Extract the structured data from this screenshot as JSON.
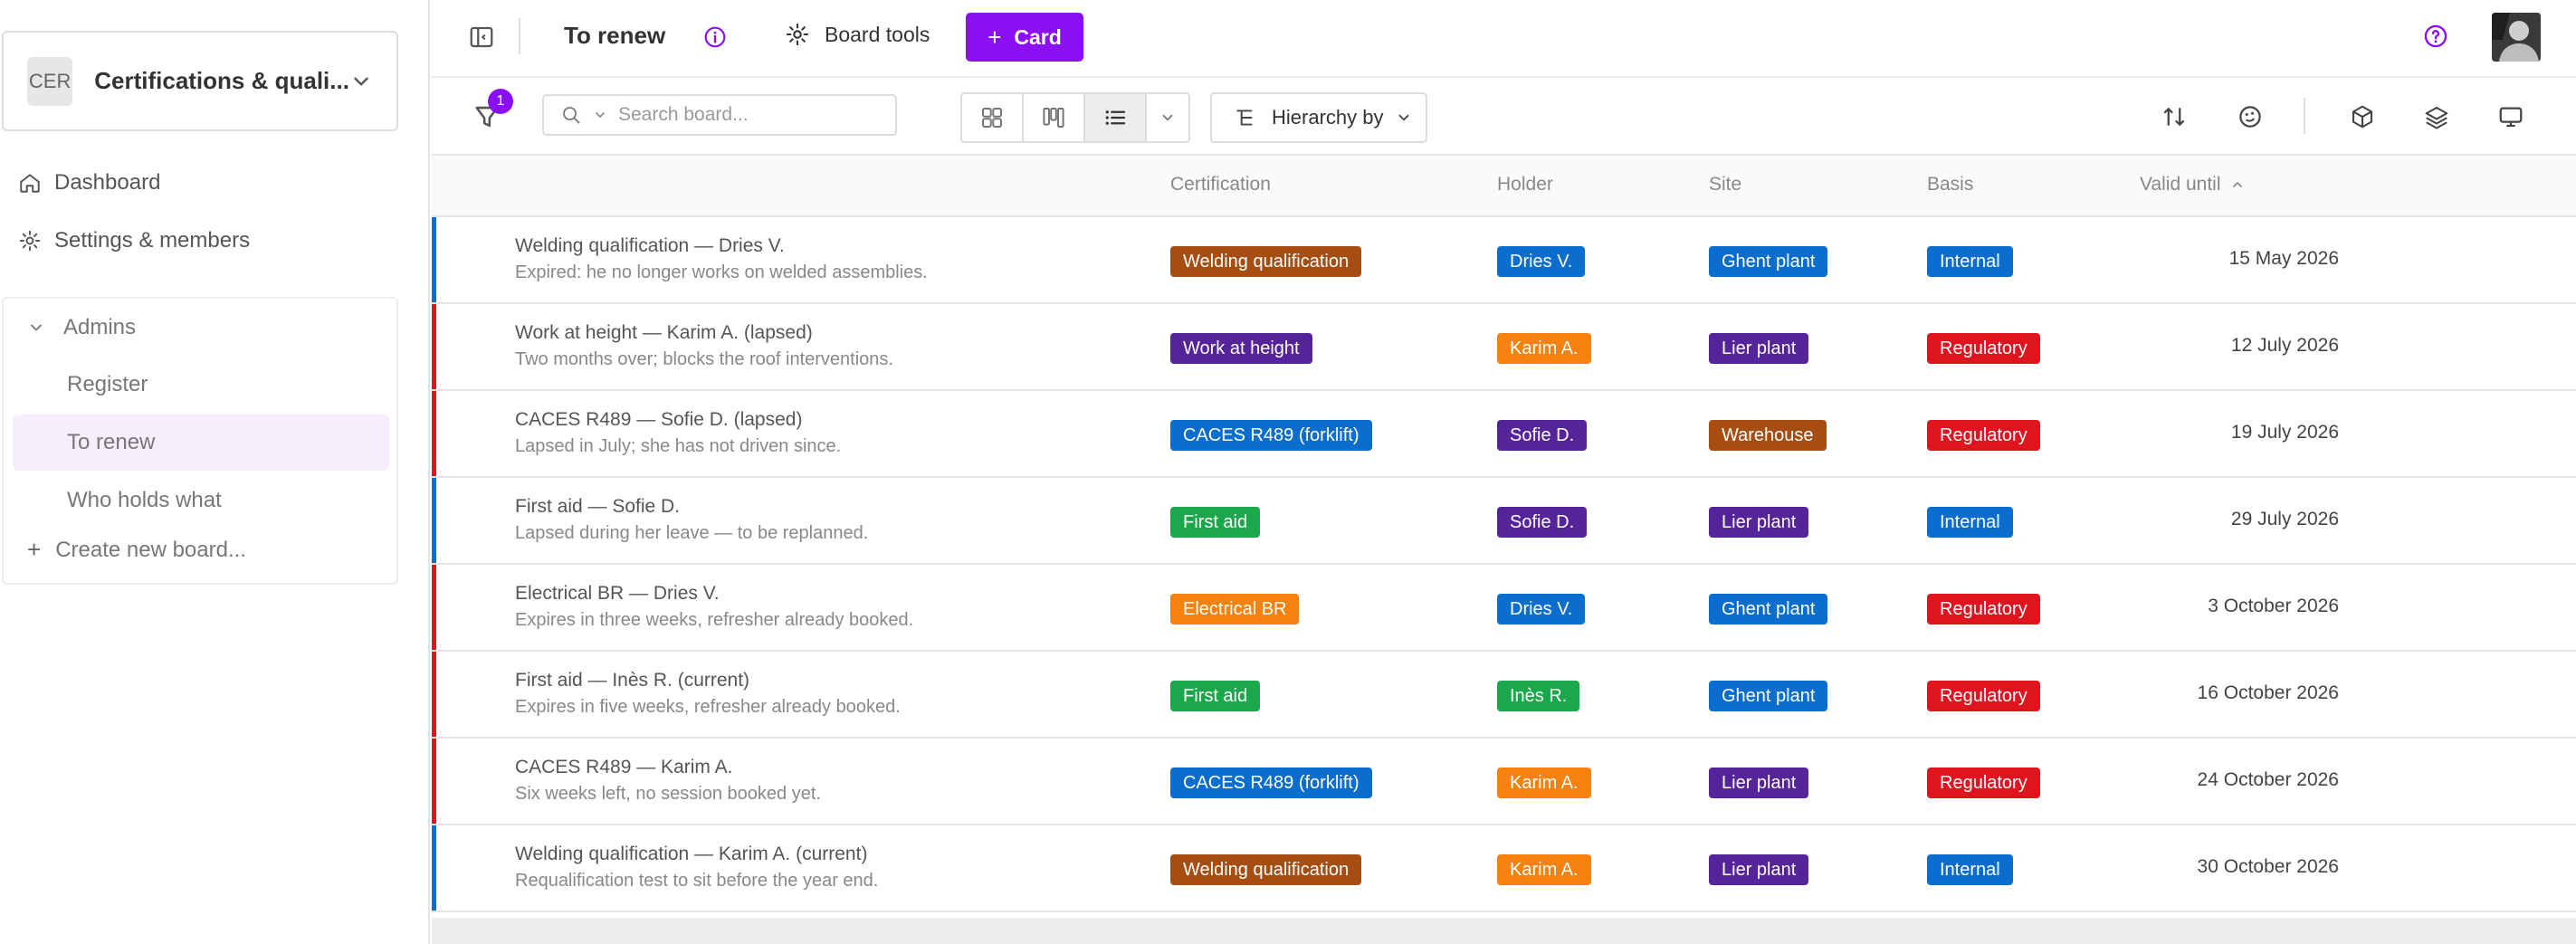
{
  "sidebar": {
    "workspace_badge": "CER",
    "workspace_name": "Certifications & quali...",
    "dashboard": "Dashboard",
    "settings": "Settings & members",
    "group_label": "Admins",
    "boards": [
      "Register",
      "To renew",
      "Who holds what"
    ],
    "active_board": "To renew",
    "create_board": "Create new board..."
  },
  "topbar": {
    "title": "To renew",
    "board_tools": "Board tools",
    "card_button": "Card"
  },
  "toolbar": {
    "filter_count": "1",
    "search_placeholder": "Search board...",
    "hierarchy_label": "Hierarchy by"
  },
  "table": {
    "columns": {
      "certification": "Certification",
      "holder": "Holder",
      "site": "Site",
      "basis": "Basis",
      "valid_until": "Valid until"
    },
    "rows": [
      {
        "title": "Welding qualification — Dries V.",
        "sub": "Expired: he no longer works on welded assemblies.",
        "cert": "Welding qualification",
        "holder": "Dries V.",
        "site": "Ghent plant",
        "basis": "Internal",
        "date": "15 May 2026"
      },
      {
        "title": "Work at height — Karim A. (lapsed)",
        "sub": "Two months over; blocks the roof interventions.",
        "cert": "Work at height",
        "holder": "Karim A.",
        "site": "Lier plant",
        "basis": "Regulatory",
        "date": "12 July 2026"
      },
      {
        "title": "CACES R489 — Sofie D. (lapsed)",
        "sub": "Lapsed in July; she has not driven since.",
        "cert": "CACES R489 (forklift)",
        "holder": "Sofie D.",
        "site": "Warehouse",
        "basis": "Regulatory",
        "date": "19 July 2026"
      },
      {
        "title": "First aid — Sofie D.",
        "sub": "Lapsed during her leave — to be replanned.",
        "cert": "First aid",
        "holder": "Sofie D.",
        "site": "Lier plant",
        "basis": "Internal",
        "date": "29 July 2026"
      },
      {
        "title": "Electrical BR — Dries V.",
        "sub": "Expires in three weeks, refresher already booked.",
        "cert": "Electrical BR",
        "holder": "Dries V.",
        "site": "Ghent plant",
        "basis": "Regulatory",
        "date": "3 October 2026"
      },
      {
        "title": "First aid — Inès R. (current)",
        "sub": "Expires in five weeks, refresher already booked.",
        "cert": "First aid",
        "holder": "Inès R.",
        "site": "Ghent plant",
        "basis": "Regulatory",
        "date": "16 October 2026"
      },
      {
        "title": "CACES R489 — Karim A.",
        "sub": "Six weeks left, no session booked yet.",
        "cert": "CACES R489 (forklift)",
        "holder": "Karim A.",
        "site": "Lier plant",
        "basis": "Regulatory",
        "date": "24 October 2026"
      },
      {
        "title": "Welding qualification — Karim A. (current)",
        "sub": "Requalification test to sit before the year end.",
        "cert": "Welding qualification",
        "holder": "Karim A.",
        "site": "Lier plant",
        "basis": "Internal",
        "date": "30 October 2026"
      }
    ]
  },
  "colors": {
    "accent": "#8a0ff2",
    "bar_internal": "#0b6ecf",
    "bar_regulatory": "#e0141e",
    "cert": {
      "Welding qualification": "#a64d12",
      "Work at height": "#55249b",
      "CACES R489 (forklift)": "#0b6ecf",
      "First aid": "#1aa84b",
      "Electrical BR": "#f5820f"
    },
    "holder": {
      "Dries V.": "#0b6ecf",
      "Karim A.": "#f5820f",
      "Sofie D.": "#55249b",
      "Inès R.": "#1aa84b"
    },
    "site": {
      "Ghent plant": "#0b6ecf",
      "Lier plant": "#55249b",
      "Warehouse": "#a64d12"
    },
    "basis": {
      "Internal": "#0b6ecf",
      "Regulatory": "#e0141e"
    }
  },
  "icons": {
    "dashboard": "home-icon",
    "settings": "gear-icon",
    "info": "info-icon",
    "board_tools": "gear-icon",
    "help": "help-icon",
    "filter": "filter-icon",
    "search": "search-icon",
    "views": [
      "grid-view-icon",
      "kanban-view-icon",
      "list-view-icon"
    ],
    "hierarchy": "hierarchy-icon",
    "toolbar_right": [
      "sort-icon",
      "palette-icon",
      "cube-icon",
      "layers-icon",
      "monitor-icon"
    ]
  }
}
